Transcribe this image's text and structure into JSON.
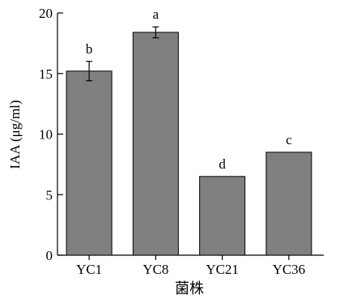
{
  "chart_data": {
    "type": "bar",
    "categories": [
      "YC1",
      "YC8",
      "YC21",
      "YC36"
    ],
    "values": [
      15.2,
      18.4,
      6.5,
      8.5
    ],
    "errors": [
      0.8,
      0.45,
      0.0,
      0.0
    ],
    "significance": [
      "b",
      "a",
      "d",
      "c"
    ],
    "xlabel": "菌株",
    "ylabel": "IAA (μg/ml)",
    "ylim": [
      0,
      20
    ],
    "yticks": [
      0,
      5,
      10,
      15,
      20
    ],
    "bar_color": "#808080",
    "grid": false
  }
}
